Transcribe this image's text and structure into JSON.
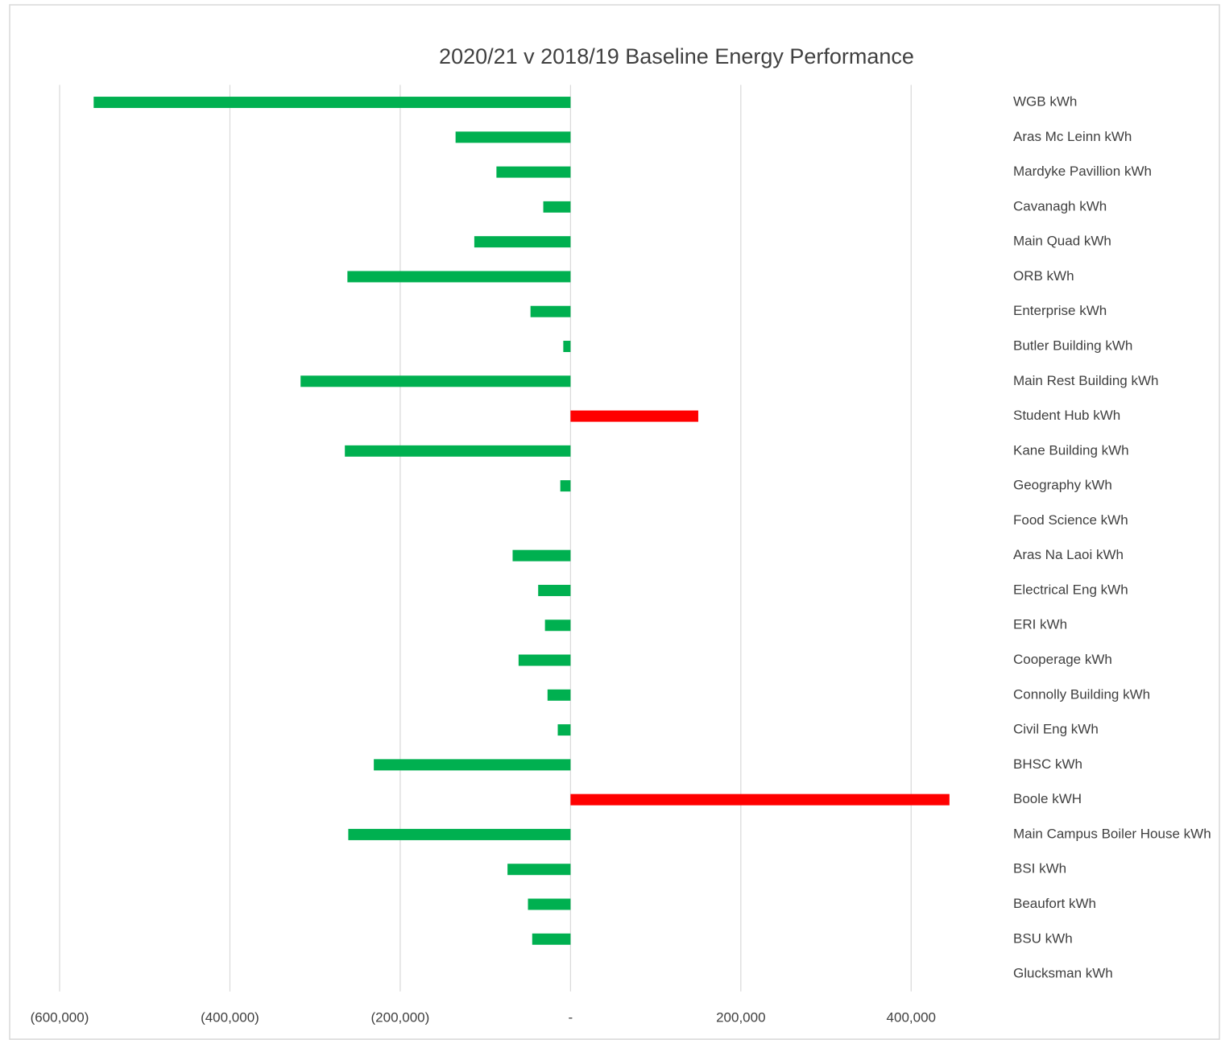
{
  "chart_data": {
    "type": "barh",
    "title": "2020/21 v 2018/19 Baseline Energy Performance",
    "categories": [
      "WGB kWh",
      "Aras Mc Leinn kWh",
      "Mardyke Pavillion kWh",
      "Cavanagh kWh",
      "Main Quad kWh",
      "ORB kWh",
      "Enterprise kWh",
      "Butler Building kWh",
      "Main Rest Building kWh",
      "Student Hub kWh",
      "Kane Building kWh",
      "Geography kWh",
      "Food Science kWh",
      "Aras Na Laoi kWh",
      "Electrical Eng kWh",
      "ERI kWh",
      "Cooperage kWh",
      "Connolly Building kWh",
      "Civil Eng kWh",
      "BHSC kWh",
      "Boole kWH",
      "Main Campus Boiler House kWh",
      "BSI kWh",
      "Beaufort kWh",
      "BSU kWh",
      "Glucksman kWh"
    ],
    "values": [
      -560000,
      -135000,
      -87000,
      -32000,
      -113000,
      -262000,
      -47000,
      -8500,
      -317000,
      150000,
      -265000,
      -12000,
      0,
      -68000,
      -38000,
      -30000,
      -61000,
      -27000,
      -15000,
      -231000,
      445000,
      -261000,
      -74000,
      -50000,
      -45000,
      0
    ],
    "colors": [
      "#00b050",
      "#00b050",
      "#00b050",
      "#00b050",
      "#00b050",
      "#00b050",
      "#00b050",
      "#00b050",
      "#00b050",
      "#ff0000",
      "#00b050",
      "#00b050",
      "#00b050",
      "#00b050",
      "#00b050",
      "#00b050",
      "#00b050",
      "#00b050",
      "#00b050",
      "#00b050",
      "#ff0000",
      "#00b050",
      "#00b050",
      "#00b050",
      "#00b050",
      "#00b050"
    ],
    "xlim": [
      -600000,
      500000
    ],
    "xticks": [
      {
        "value": -600000,
        "label": "(600,000)"
      },
      {
        "value": -400000,
        "label": "(400,000)"
      },
      {
        "value": -200000,
        "label": "(200,000)"
      },
      {
        "value": 0,
        "label": "-"
      },
      {
        "value": 200000,
        "label": "200,000"
      },
      {
        "value": 400000,
        "label": "400,000"
      }
    ],
    "grid": true
  }
}
